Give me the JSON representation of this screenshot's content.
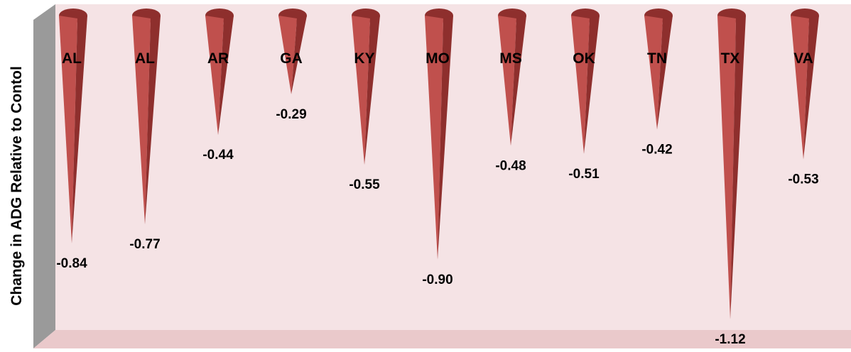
{
  "chart_data": {
    "type": "bar",
    "style": "3d-cone",
    "ylabel": "Change in  ADG Relative to Contol",
    "xlabel": "",
    "title": "",
    "categories": [
      "AL",
      "AL",
      "AR",
      "GA",
      "KY",
      "MO",
      "MS",
      "OK",
      "TN",
      "TX",
      "VA"
    ],
    "values": [
      -0.84,
      -0.77,
      -0.44,
      -0.29,
      -0.55,
      -0.9,
      -0.48,
      -0.51,
      -0.42,
      -1.12,
      -0.53
    ],
    "value_labels": [
      "-0.84",
      "-0.77",
      "-0.44",
      "-0.29",
      "-0.55",
      "-0.90",
      "-0.48",
      "-0.51",
      "-0.42",
      "-1.12",
      "-0.53"
    ],
    "ylim": [
      -1.2,
      0
    ],
    "grid": false,
    "legend": "none",
    "colors": {
      "cone_front": "#c0504d",
      "cone_shade": "#8e2f2d",
      "back_wall": "#f5e3e5",
      "floor": "#eac9cb",
      "side_wall": "#9a9a9a"
    }
  }
}
